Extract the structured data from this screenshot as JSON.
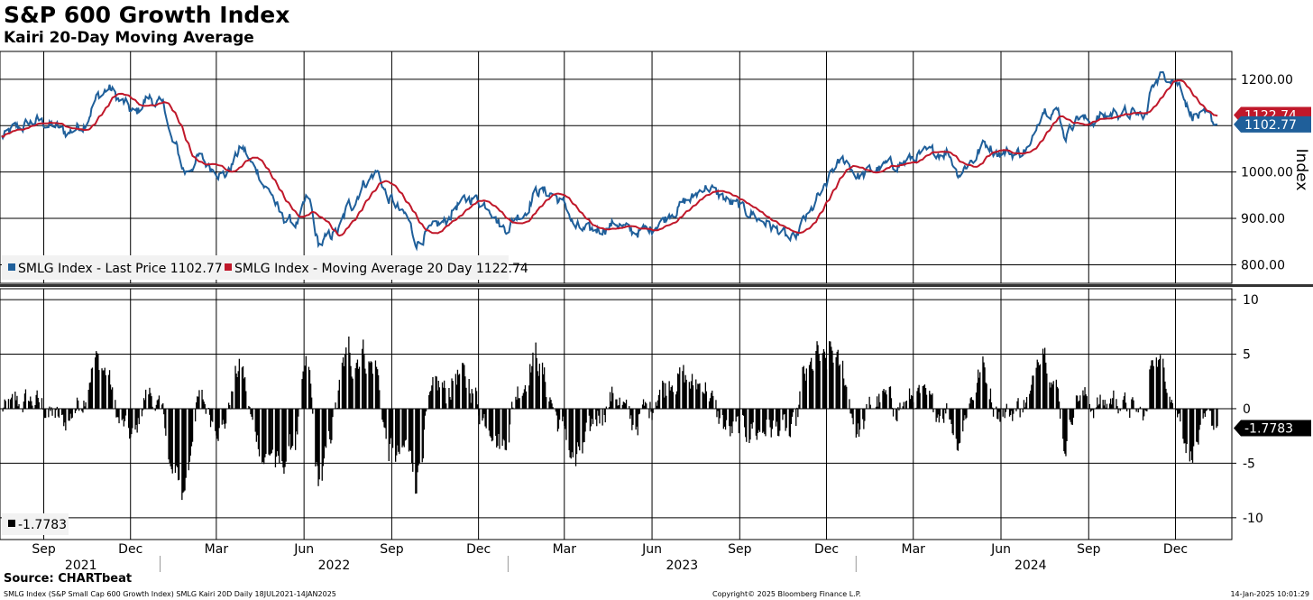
{
  "header": {
    "title": "S&P 600 Growth Index",
    "subtitle": "Kairi 20-Day Moving Average"
  },
  "footer": {
    "source": "Source: CHARTbeat",
    "left": "SMLG Index (S&P Small Cap 600 Growth Index) SMLG Kairi 20D  Daily 18JUL2021-14JAN2025",
    "middle": "Copyright© 2025 Bloomberg Finance L.P.",
    "right": "14-Jan-2025 10:01:29"
  },
  "colors": {
    "price": "#1f5f9a",
    "ma": "#c0182a",
    "bar": "#000000"
  },
  "chart_data": [
    {
      "type": "line",
      "ylabel": "Index",
      "ylim": [
        760,
        1260
      ],
      "y_ticks": [
        "800.00",
        "900.00",
        "1000.00",
        "1200.00"
      ],
      "y_tick_values": [
        800,
        900,
        1000,
        1200
      ],
      "grid": true,
      "legend_position": "bottom-left",
      "series": [
        {
          "name": "SMLG Index - Last Price",
          "legend_value": "1102.77",
          "last_label": "1102.77",
          "anchors": [
            [
              "2021-07-19",
              1075
            ],
            [
              "2021-08-05",
              1095
            ],
            [
              "2021-08-25",
              1110
            ],
            [
              "2021-09-10",
              1100
            ],
            [
              "2021-09-25",
              1085
            ],
            [
              "2021-10-10",
              1100
            ],
            [
              "2021-10-30",
              1165
            ],
            [
              "2021-11-08",
              1180
            ],
            [
              "2021-11-22",
              1150
            ],
            [
              "2021-12-05",
              1125
            ],
            [
              "2021-12-20",
              1160
            ],
            [
              "2022-01-05",
              1140
            ],
            [
              "2022-01-15",
              1060
            ],
            [
              "2022-01-28",
              1000
            ],
            [
              "2022-02-10",
              1030
            ],
            [
              "2022-02-25",
              1010
            ],
            [
              "2022-03-10",
              995
            ],
            [
              "2022-03-28",
              1050
            ],
            [
              "2022-04-10",
              1010
            ],
            [
              "2022-04-25",
              960
            ],
            [
              "2022-05-10",
              900
            ],
            [
              "2022-05-25",
              890
            ],
            [
              "2022-06-05",
              940
            ],
            [
              "2022-06-17",
              845
            ],
            [
              "2022-07-05",
              870
            ],
            [
              "2022-07-20",
              930
            ],
            [
              "2022-08-05",
              980
            ],
            [
              "2022-08-16",
              1000
            ],
            [
              "2022-08-30",
              940
            ],
            [
              "2022-09-15",
              905
            ],
            [
              "2022-09-28",
              850
            ],
            [
              "2022-10-10",
              870
            ],
            [
              "2022-10-25",
              890
            ],
            [
              "2022-11-10",
              930
            ],
            [
              "2022-11-25",
              945
            ],
            [
              "2022-12-10",
              930
            ],
            [
              "2022-12-28",
              880
            ],
            [
              "2023-01-15",
              910
            ],
            [
              "2023-02-02",
              960
            ],
            [
              "2023-02-15",
              955
            ],
            [
              "2023-03-01",
              930
            ],
            [
              "2023-03-13",
              880
            ],
            [
              "2023-03-25",
              870
            ],
            [
              "2023-04-10",
              880
            ],
            [
              "2023-04-25",
              890
            ],
            [
              "2023-05-10",
              870
            ],
            [
              "2023-05-28",
              875
            ],
            [
              "2023-06-10",
              895
            ],
            [
              "2023-06-25",
              920
            ],
            [
              "2023-07-10",
              940
            ],
            [
              "2023-07-28",
              970
            ],
            [
              "2023-08-10",
              950
            ],
            [
              "2023-08-25",
              930
            ],
            [
              "2023-09-10",
              915
            ],
            [
              "2023-09-25",
              895
            ],
            [
              "2023-10-10",
              875
            ],
            [
              "2023-10-27",
              850
            ],
            [
              "2023-11-10",
              900
            ],
            [
              "2023-11-25",
              950
            ],
            [
              "2023-12-10",
              1010
            ],
            [
              "2023-12-20",
              1025
            ],
            [
              "2024-01-05",
              990
            ],
            [
              "2024-01-20",
              1005
            ],
            [
              "2024-02-05",
              1015
            ],
            [
              "2024-02-20",
              1020
            ],
            [
              "2024-03-05",
              1035
            ],
            [
              "2024-03-20",
              1040
            ],
            [
              "2024-04-05",
              1045
            ],
            [
              "2024-04-18",
              1000
            ],
            [
              "2024-05-01",
              1025
            ],
            [
              "2024-05-15",
              1060
            ],
            [
              "2024-05-30",
              1045
            ],
            [
              "2024-06-15",
              1040
            ],
            [
              "2024-06-30",
              1050
            ],
            [
              "2024-07-16",
              1140
            ],
            [
              "2024-07-31",
              1130
            ],
            [
              "2024-08-07",
              1080
            ],
            [
              "2024-08-20",
              1120
            ],
            [
              "2024-09-01",
              1110
            ],
            [
              "2024-09-18",
              1120
            ],
            [
              "2024-10-01",
              1130
            ],
            [
              "2024-10-15",
              1125
            ],
            [
              "2024-10-31",
              1120
            ],
            [
              "2024-11-08",
              1200
            ],
            [
              "2024-11-25",
              1210
            ],
            [
              "2024-12-05",
              1190
            ],
            [
              "2024-12-18",
              1125
            ],
            [
              "2025-01-03",
              1115
            ],
            [
              "2025-01-14",
              1102.77
            ]
          ]
        },
        {
          "name": "SMLG Index - Moving Average 20 Day",
          "legend_value": "1122.74",
          "last_label": "1122.74"
        }
      ]
    },
    {
      "type": "bar",
      "ylim": [
        -12,
        11
      ],
      "y_ticks": [
        "-10",
        "-5",
        "0",
        "5",
        "10"
      ],
      "y_tick_values": [
        -10,
        -5,
        0,
        5,
        10
      ],
      "grid": true,
      "legend_position": "bottom-left",
      "series": [
        {
          "name": "Kairi 20D",
          "legend_value": "-1.7783",
          "last_label": "-1.7783"
        }
      ]
    }
  ],
  "x_axis": {
    "start": "2021-07-19",
    "end": "2025-01-14",
    "month_ticks": [
      {
        "date": "2021-09-01",
        "label": "Sep"
      },
      {
        "date": "2021-12-01",
        "label": "Dec"
      },
      {
        "date": "2022-03-01",
        "label": "Mar"
      },
      {
        "date": "2022-06-01",
        "label": "Jun"
      },
      {
        "date": "2022-09-01",
        "label": "Sep"
      },
      {
        "date": "2022-12-01",
        "label": "Dec"
      },
      {
        "date": "2023-03-01",
        "label": "Mar"
      },
      {
        "date": "2023-06-01",
        "label": "Jun"
      },
      {
        "date": "2023-09-01",
        "label": "Sep"
      },
      {
        "date": "2023-12-01",
        "label": "Dec"
      },
      {
        "date": "2024-03-01",
        "label": "Mar"
      },
      {
        "date": "2024-06-01",
        "label": "Jun"
      },
      {
        "date": "2024-09-01",
        "label": "Sep"
      },
      {
        "date": "2024-12-01",
        "label": "Dec"
      }
    ],
    "years": [
      {
        "label": "2021",
        "from": "2021-07-19",
        "to": "2022-01-01"
      },
      {
        "label": "2022",
        "from": "2022-01-01",
        "to": "2023-01-01"
      },
      {
        "label": "2023",
        "from": "2023-01-01",
        "to": "2024-01-01"
      },
      {
        "label": "2024",
        "from": "2024-01-01",
        "to": "2025-01-01"
      }
    ]
  }
}
